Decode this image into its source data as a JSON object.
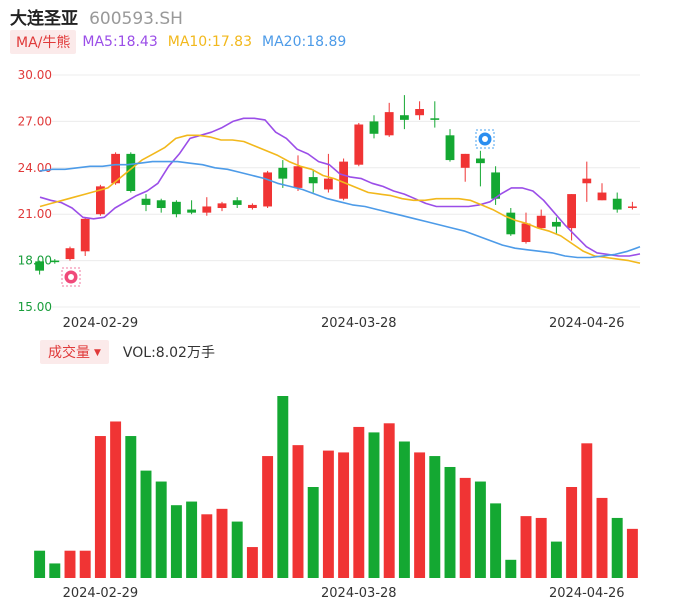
{
  "header": {
    "name": "大连圣亚",
    "code": "600593.SH"
  },
  "ma_legend": {
    "toggle": "MA/牛熊",
    "ma5": "MA5:18.43",
    "ma10": "MA10:17.83",
    "ma20": "MA20:18.89"
  },
  "volume_legend": {
    "toggle": "成交量",
    "value": "VOL:8.02万手"
  },
  "colors": {
    "up": "#f03434",
    "down": "#14a832",
    "ma5": "#9b4ee8",
    "ma10": "#f2b81c",
    "ma20": "#4d9be8",
    "axis_red": "#e03a3a",
    "axis_green": "#1a9e3c"
  },
  "icons": {
    "bull_marker": "bull-icon",
    "bear_marker": "bear-icon"
  },
  "chart_data": [
    {
      "type": "candlestick",
      "y_ticks": [
        "30.00",
        "27.00",
        "24.00",
        "21.00",
        "18.00",
        "15.00"
      ],
      "ylim": [
        15,
        30
      ],
      "x_ticks": [
        "2024-02-29",
        "2024-03-28",
        "2024-04-26"
      ],
      "x_tick_index": [
        4,
        21,
        36
      ],
      "candles": [
        {
          "o": 17.95,
          "c": 17.35,
          "h": 18.0,
          "l": 17.1
        },
        {
          "o": 18.0,
          "c": 17.9,
          "h": 18.1,
          "l": 17.8
        },
        {
          "o": 18.1,
          "c": 18.8,
          "h": 18.9,
          "l": 18.0
        },
        {
          "o": 18.6,
          "c": 20.7,
          "h": 20.8,
          "l": 18.3
        },
        {
          "o": 21.0,
          "c": 22.8,
          "h": 22.9,
          "l": 20.9
        },
        {
          "o": 23.0,
          "c": 24.9,
          "h": 25.0,
          "l": 22.9
        },
        {
          "o": 24.9,
          "c": 22.5,
          "h": 25.0,
          "l": 22.4
        },
        {
          "o": 22.0,
          "c": 21.6,
          "h": 22.3,
          "l": 21.2
        },
        {
          "o": 21.9,
          "c": 21.4,
          "h": 22.0,
          "l": 21.1
        },
        {
          "o": 21.8,
          "c": 21.0,
          "h": 21.9,
          "l": 20.8
        },
        {
          "o": 21.3,
          "c": 21.1,
          "h": 21.9,
          "l": 21.0
        },
        {
          "o": 21.1,
          "c": 21.5,
          "h": 22.1,
          "l": 20.9
        },
        {
          "o": 21.4,
          "c": 21.7,
          "h": 21.8,
          "l": 21.2
        },
        {
          "o": 21.9,
          "c": 21.6,
          "h": 22.1,
          "l": 21.4
        },
        {
          "o": 21.4,
          "c": 21.6,
          "h": 21.7,
          "l": 21.3
        },
        {
          "o": 21.5,
          "c": 23.7,
          "h": 23.8,
          "l": 21.4
        },
        {
          "o": 24.0,
          "c": 23.3,
          "h": 24.5,
          "l": 22.7
        },
        {
          "o": 22.7,
          "c": 24.1,
          "h": 24.8,
          "l": 22.5
        },
        {
          "o": 23.4,
          "c": 23.0,
          "h": 23.9,
          "l": 22.4
        },
        {
          "o": 22.6,
          "c": 23.3,
          "h": 24.9,
          "l": 22.4
        },
        {
          "o": 22.0,
          "c": 24.4,
          "h": 24.6,
          "l": 21.9
        },
        {
          "o": 24.2,
          "c": 26.8,
          "h": 26.9,
          "l": 24.1
        },
        {
          "o": 27.0,
          "c": 26.2,
          "h": 27.4,
          "l": 25.9
        },
        {
          "o": 26.1,
          "c": 27.6,
          "h": 28.2,
          "l": 26.0
        },
        {
          "o": 27.4,
          "c": 27.1,
          "h": 28.7,
          "l": 26.5
        },
        {
          "o": 27.4,
          "c": 27.8,
          "h": 28.3,
          "l": 27.1
        },
        {
          "o": 27.2,
          "c": 27.1,
          "h": 28.3,
          "l": 26.6
        },
        {
          "o": 26.1,
          "c": 24.5,
          "h": 26.5,
          "l": 24.4
        },
        {
          "o": 24.0,
          "c": 24.9,
          "h": 24.9,
          "l": 23.1
        },
        {
          "o": 24.6,
          "c": 24.3,
          "h": 25.1,
          "l": 22.8
        },
        {
          "o": 23.7,
          "c": 22.0,
          "h": 24.1,
          "l": 21.6
        },
        {
          "o": 21.1,
          "c": 19.7,
          "h": 21.4,
          "l": 19.6
        },
        {
          "o": 19.2,
          "c": 20.4,
          "h": 21.1,
          "l": 19.1
        },
        {
          "o": 20.1,
          "c": 20.9,
          "h": 21.3,
          "l": 20.0
        },
        {
          "o": 20.5,
          "c": 20.2,
          "h": 20.8,
          "l": 19.7
        },
        {
          "o": 20.1,
          "c": 22.3,
          "h": 22.3,
          "l": 19.3
        },
        {
          "o": 23.0,
          "c": 23.3,
          "h": 24.4,
          "l": 21.8
        },
        {
          "o": 21.9,
          "c": 22.4,
          "h": 23.0,
          "l": 21.9
        },
        {
          "o": 22.0,
          "c": 21.3,
          "h": 22.4,
          "l": 21.1
        },
        {
          "o": 21.5,
          "c": 21.5,
          "h": 21.8,
          "l": 21.3
        }
      ],
      "ma5": [
        22.1,
        21.9,
        21.75,
        21.4,
        20.8,
        20.7,
        20.8,
        21.4,
        21.8,
        22.2,
        22.5,
        23.0,
        24.1,
        24.9,
        25.9,
        26.1,
        26.3,
        26.6,
        27.0,
        27.2,
        27.2,
        27.1,
        26.3,
        25.9,
        25.2,
        24.9,
        24.4,
        24.2,
        23.6,
        23.4,
        23.3,
        23.0,
        22.8,
        22.5,
        22.3,
        22.0,
        21.7,
        21.5,
        21.5,
        21.5,
        21.5,
        21.6,
        21.8,
        22.3,
        22.7,
        22.7,
        22.5,
        21.9,
        21.1,
        20.3,
        19.6,
        18.9,
        18.5,
        18.4,
        18.3,
        18.3,
        18.43
      ],
      "ma10": [
        21.5,
        21.7,
        21.9,
        22.1,
        22.3,
        22.5,
        22.7,
        23.3,
        23.9,
        24.5,
        24.9,
        25.3,
        25.9,
        26.1,
        26.1,
        26.0,
        25.8,
        25.8,
        25.7,
        25.4,
        25.1,
        24.8,
        24.4,
        24.1,
        23.9,
        23.5,
        23.3,
        23.0,
        22.7,
        22.4,
        22.3,
        22.2,
        22.0,
        21.9,
        21.9,
        22.0,
        22.0,
        22.0,
        21.9,
        21.6,
        21.3,
        20.9,
        20.6,
        20.4,
        20.1,
        19.9,
        19.6,
        19.1,
        18.6,
        18.3,
        18.2,
        18.1,
        18.0,
        17.83
      ],
      "ma20": [
        23.8,
        23.9,
        23.9,
        24.0,
        24.1,
        24.1,
        24.2,
        24.2,
        24.3,
        24.4,
        24.4,
        24.4,
        24.3,
        24.2,
        24.0,
        23.9,
        23.7,
        23.5,
        23.3,
        23.0,
        22.8,
        22.6,
        22.3,
        22.0,
        21.8,
        21.6,
        21.5,
        21.3,
        21.1,
        20.9,
        20.7,
        20.5,
        20.3,
        20.1,
        19.9,
        19.6,
        19.3,
        19.0,
        18.8,
        18.7,
        18.6,
        18.5,
        18.3,
        18.2,
        18.2,
        18.3,
        18.4,
        18.6,
        18.89
      ]
    },
    {
      "type": "bar",
      "title": "",
      "volumes": [
        0.15,
        0.08,
        0.15,
        0.15,
        0.78,
        0.86,
        0.78,
        0.59,
        0.53,
        0.4,
        0.42,
        0.35,
        0.38,
        0.31,
        0.17,
        0.67,
        1.0,
        0.73,
        0.5,
        0.7,
        0.69,
        0.83,
        0.8,
        0.85,
        0.75,
        0.69,
        0.67,
        0.61,
        0.55,
        0.53,
        0.41,
        0.1,
        0.34,
        0.33,
        0.2,
        0.5,
        0.74,
        0.44,
        0.33,
        0.27
      ],
      "x_ticks": [
        "2024-02-29",
        "2024-03-28",
        "2024-04-26"
      ]
    }
  ]
}
